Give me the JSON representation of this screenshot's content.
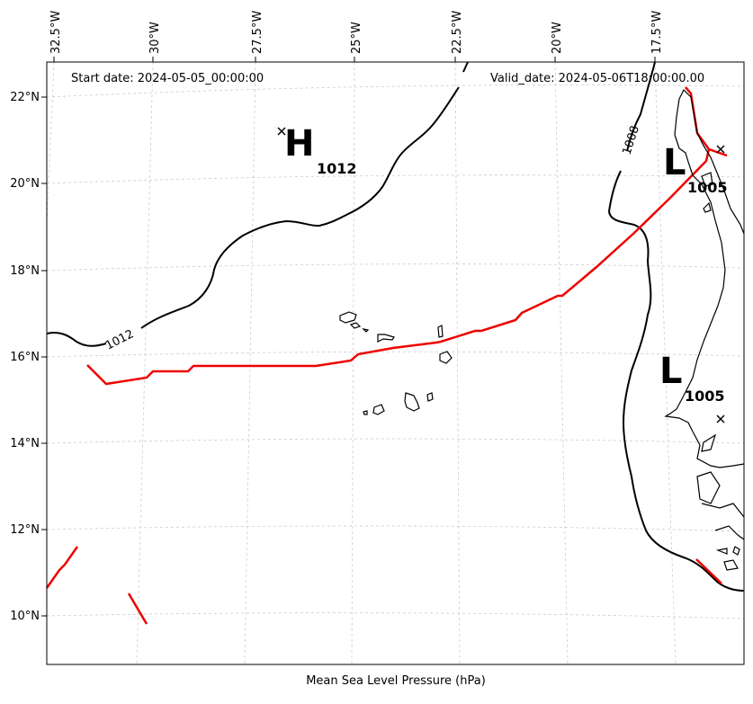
{
  "header": {
    "start_date": "Start date: 2024-05-05_00:00:00",
    "valid_date": "Valid_date: 2024-05-06T18:00:00.00"
  },
  "caption": "Mean Sea Level Pressure (hPa)",
  "axes": {
    "lon_ticks": [
      "32.5°W",
      "30°W",
      "27.5°W",
      "25°W",
      "22.5°W",
      "20°W",
      "17.5°W"
    ],
    "lat_ticks": [
      "22°N",
      "20°N",
      "18°N",
      "16°N",
      "14°N",
      "12°N",
      "10°N"
    ]
  },
  "pressure_systems": [
    {
      "type": "H",
      "value": "1012"
    },
    {
      "type": "L",
      "value": "1005"
    },
    {
      "type": "L",
      "value": "1005"
    }
  ],
  "isobar_labels": [
    "1012",
    "1008"
  ],
  "colors": {
    "front": "#ee0000",
    "isobar": "#000000",
    "grid": "#cccccc",
    "coast": "#000000"
  }
}
